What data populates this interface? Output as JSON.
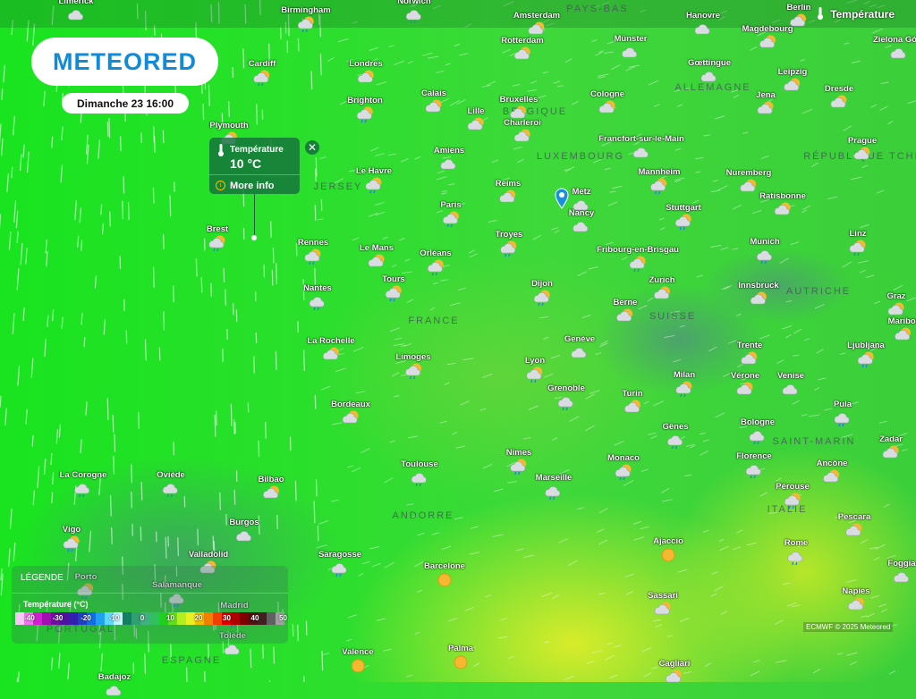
{
  "header": {
    "layer_label": "Température",
    "logo_text": "METEORED",
    "date": "Dimanche 23 16:00"
  },
  "popup": {
    "title": "Température",
    "value": "10 °C",
    "more_info": "More info",
    "close_icon": "close-icon"
  },
  "legend": {
    "title": "LÉGENDE",
    "unit_label": "Température (°C)",
    "ticks": [
      "-40",
      "-30",
      "-20",
      "-10",
      "0",
      "10",
      "20",
      "30",
      "40",
      "50"
    ],
    "colors": [
      "#f8c8f8",
      "#f070f0",
      "#d020d0",
      "#a010b0",
      "#7010a0",
      "#5010a0",
      "#3020b0",
      "#2040c0",
      "#1070e0",
      "#20a0f0",
      "#60d8ff",
      "#c0f8ff",
      "#108060",
      "#30a070",
      "#40b080",
      "#30c060",
      "#20d020",
      "#60e020",
      "#b0f020",
      "#e8f020",
      "#f0c000",
      "#f08000",
      "#f04000",
      "#e00000",
      "#b00000",
      "#800000",
      "#501010",
      "#402020",
      "#606060",
      "#a0a0a0"
    ]
  },
  "attribution": "ECMWF © 2025 Meteored",
  "regions": [
    "PAYS-BAS",
    "ALLEMAGNE",
    "BELGIQUE",
    "LUXEMBOURG",
    "RÉPUBLIQUE TCHÈQUE",
    "JERSEY",
    "FRANCE",
    "SUISSE",
    "AUTRICHE",
    "SAINT-MARIN",
    "ITALIE",
    "ANDORRE",
    "PORTUGAL",
    "ESPAGNE"
  ],
  "cities": [
    {
      "name": "Limerick",
      "icon": "cloud"
    },
    {
      "name": "Birmingham",
      "icon": "sun-cloud-rain"
    },
    {
      "name": "Norwich",
      "icon": "cloud-rain"
    },
    {
      "name": "Amsterdam",
      "icon": "sun-cloud"
    },
    {
      "name": "Hanovre",
      "icon": "cloud"
    },
    {
      "name": "Berlin",
      "icon": "sun-cloud"
    },
    {
      "name": "Magdebourg",
      "icon": "sun-cloud"
    },
    {
      "name": "Zielona Góra",
      "icon": "cloud"
    },
    {
      "name": "Rotterdam",
      "icon": "sun-cloud"
    },
    {
      "name": "Münster",
      "icon": "cloud"
    },
    {
      "name": "Cardiff",
      "icon": "sun-cloud-rain"
    },
    {
      "name": "Londres",
      "icon": "sun-cloud"
    },
    {
      "name": "Gœttingue",
      "icon": "cloud"
    },
    {
      "name": "Leipzig",
      "icon": "sun-cloud"
    },
    {
      "name": "Dresde",
      "icon": "sun-cloud"
    },
    {
      "name": "Jena",
      "icon": "sun-cloud"
    },
    {
      "name": "Brighton",
      "icon": "sun-cloud-rain"
    },
    {
      "name": "Calais",
      "icon": "sun-cloud"
    },
    {
      "name": "Bruxelles",
      "icon": "sun-cloud"
    },
    {
      "name": "Cologne",
      "icon": "sun-cloud"
    },
    {
      "name": "Lille",
      "icon": "sun-cloud"
    },
    {
      "name": "Charleroi",
      "icon": "sun-cloud"
    },
    {
      "name": "Plymouth",
      "icon": "sun-cloud"
    },
    {
      "name": "Francfort-sur-le-Main",
      "icon": "cloud"
    },
    {
      "name": "Prague",
      "icon": "sun-cloud"
    },
    {
      "name": "Amiens",
      "icon": "cloud"
    },
    {
      "name": "Le Havre",
      "icon": "sun-cloud-rain"
    },
    {
      "name": "Mannheim",
      "icon": "sun-cloud-rain"
    },
    {
      "name": "Nuremberg",
      "icon": "sun-cloud"
    },
    {
      "name": "Reims",
      "icon": "sun-cloud"
    },
    {
      "name": "Metz",
      "icon": "cloud"
    },
    {
      "name": "Ratisbonne",
      "icon": "sun-cloud"
    },
    {
      "name": "Paris",
      "icon": "sun-cloud-rain"
    },
    {
      "name": "Nancy",
      "icon": "cloud"
    },
    {
      "name": "Stuttgart",
      "icon": "sun-cloud-rain"
    },
    {
      "name": "Brest",
      "icon": "sun-cloud-rain"
    },
    {
      "name": "Rennes",
      "icon": "sun-cloud-rain"
    },
    {
      "name": "Le Mans",
      "icon": "sun-cloud"
    },
    {
      "name": "Orléans",
      "icon": "sun-cloud-rain"
    },
    {
      "name": "Troyes",
      "icon": "sun-cloud-rain"
    },
    {
      "name": "Fribourg-en-Brisgau",
      "icon": "sun-cloud-rain"
    },
    {
      "name": "Munich",
      "icon": "cloud-rain"
    },
    {
      "name": "Linz",
      "icon": "sun-cloud-rain"
    },
    {
      "name": "Zurich",
      "icon": "sun-cloud"
    },
    {
      "name": "Innsbruck",
      "icon": "sun-cloud"
    },
    {
      "name": "Graz",
      "icon": "sun-cloud"
    },
    {
      "name": "Nantes",
      "icon": "cloud-rain"
    },
    {
      "name": "Tours",
      "icon": "sun-cloud-rain"
    },
    {
      "name": "Dijon",
      "icon": "sun-cloud-rain"
    },
    {
      "name": "Berne",
      "icon": "sun-cloud"
    },
    {
      "name": "Maribor",
      "icon": "sun-cloud"
    },
    {
      "name": "Ljubljana",
      "icon": "sun-cloud-rain"
    },
    {
      "name": "La Rochelle",
      "icon": "sun-cloud"
    },
    {
      "name": "Genève",
      "icon": "cloud"
    },
    {
      "name": "Trente",
      "icon": "sun-cloud"
    },
    {
      "name": "Limoges",
      "icon": "sun-cloud-rain"
    },
    {
      "name": "Lyon",
      "icon": "sun-cloud-rain"
    },
    {
      "name": "Milan",
      "icon": "sun-cloud-rain"
    },
    {
      "name": "Vérone",
      "icon": "sun-cloud"
    },
    {
      "name": "Venise",
      "icon": "cloud"
    },
    {
      "name": "Grenoble",
      "icon": "cloud-rain"
    },
    {
      "name": "Turin",
      "icon": "sun-cloud"
    },
    {
      "name": "Pula",
      "icon": "cloud-rain"
    },
    {
      "name": "Bordeaux",
      "icon": "sun-cloud"
    },
    {
      "name": "Gênes",
      "icon": "cloud-rain"
    },
    {
      "name": "Bologne",
      "icon": "cloud-rain"
    },
    {
      "name": "Zadar",
      "icon": "sun-cloud"
    },
    {
      "name": "Nîmes",
      "icon": "sun-cloud-rain"
    },
    {
      "name": "Monaco",
      "icon": "sun-cloud-rain"
    },
    {
      "name": "Florence",
      "icon": "cloud-rain"
    },
    {
      "name": "Ancône",
      "icon": "sun-cloud"
    },
    {
      "name": "La Corogne",
      "icon": "cloud-rain"
    },
    {
      "name": "Oviède",
      "icon": "cloud-rain"
    },
    {
      "name": "Bilbao",
      "icon": "sun-cloud"
    },
    {
      "name": "Toulouse",
      "icon": "cloud-rain"
    },
    {
      "name": "Marseille",
      "icon": "cloud-rain"
    },
    {
      "name": "Pérouse",
      "icon": "sun-cloud-rain"
    },
    {
      "name": "Burgos",
      "icon": "cloud"
    },
    {
      "name": "Pescara",
      "icon": "sun-cloud"
    },
    {
      "name": "Vigo",
      "icon": "sun-cloud-rain"
    },
    {
      "name": "Saragosse",
      "icon": "cloud-rain"
    },
    {
      "name": "Ajaccio",
      "icon": "sun"
    },
    {
      "name": "Barcelone",
      "icon": "sun"
    },
    {
      "name": "Rome",
      "icon": "cloud-rain"
    },
    {
      "name": "Foggia",
      "icon": "cloud"
    },
    {
      "name": "Valladolid",
      "icon": "sun-cloud"
    },
    {
      "name": "Porto",
      "icon": "sun-cloud-rain"
    },
    {
      "name": "Salamanque",
      "icon": "cloud-rain"
    },
    {
      "name": "Napies",
      "icon": "sun-cloud"
    },
    {
      "name": "Madrid",
      "icon": "cloud-rain"
    },
    {
      "name": "Sassari",
      "icon": "sun-cloud"
    },
    {
      "name": "Tolède",
      "icon": "cloud"
    },
    {
      "name": "Valence",
      "icon": "sun"
    },
    {
      "name": "Palma",
      "icon": "sun"
    },
    {
      "name": "Cagliari",
      "icon": "sun-cloud"
    },
    {
      "name": "Badajoz",
      "icon": "cloud"
    }
  ]
}
